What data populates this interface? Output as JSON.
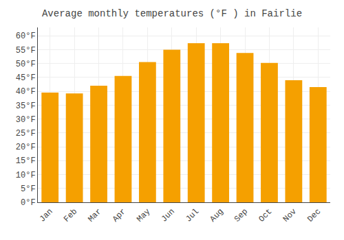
{
  "chart_data": {
    "type": "bar",
    "title": "Average monthly temperatures (°F ) in Fairlie",
    "categories": [
      "Jan",
      "Feb",
      "Mar",
      "Apr",
      "May",
      "Jun",
      "Jul",
      "Aug",
      "Sep",
      "Oct",
      "Nov",
      "Dec"
    ],
    "values": [
      39.5,
      39.2,
      42.0,
      45.5,
      50.5,
      55.0,
      57.3,
      57.3,
      53.8,
      50.2,
      44.0,
      41.5
    ],
    "color": "#F5A000",
    "ylim": [
      0,
      63
    ],
    "yticks": [
      {
        "value": 0,
        "label": "0°F"
      },
      {
        "value": 5,
        "label": "5°F"
      },
      {
        "value": 10,
        "label": "10°F"
      },
      {
        "value": 15,
        "label": "15°F"
      },
      {
        "value": 20,
        "label": "20°F"
      },
      {
        "value": 25,
        "label": "25°F"
      },
      {
        "value": 30,
        "label": "30°F"
      },
      {
        "value": 35,
        "label": "35°F"
      },
      {
        "value": 40,
        "label": "40°F"
      },
      {
        "value": 45,
        "label": "45°F"
      },
      {
        "value": 50,
        "label": "50°F"
      },
      {
        "value": 55,
        "label": "55°F"
      },
      {
        "value": 60,
        "label": "60°F"
      }
    ],
    "grid": true
  }
}
